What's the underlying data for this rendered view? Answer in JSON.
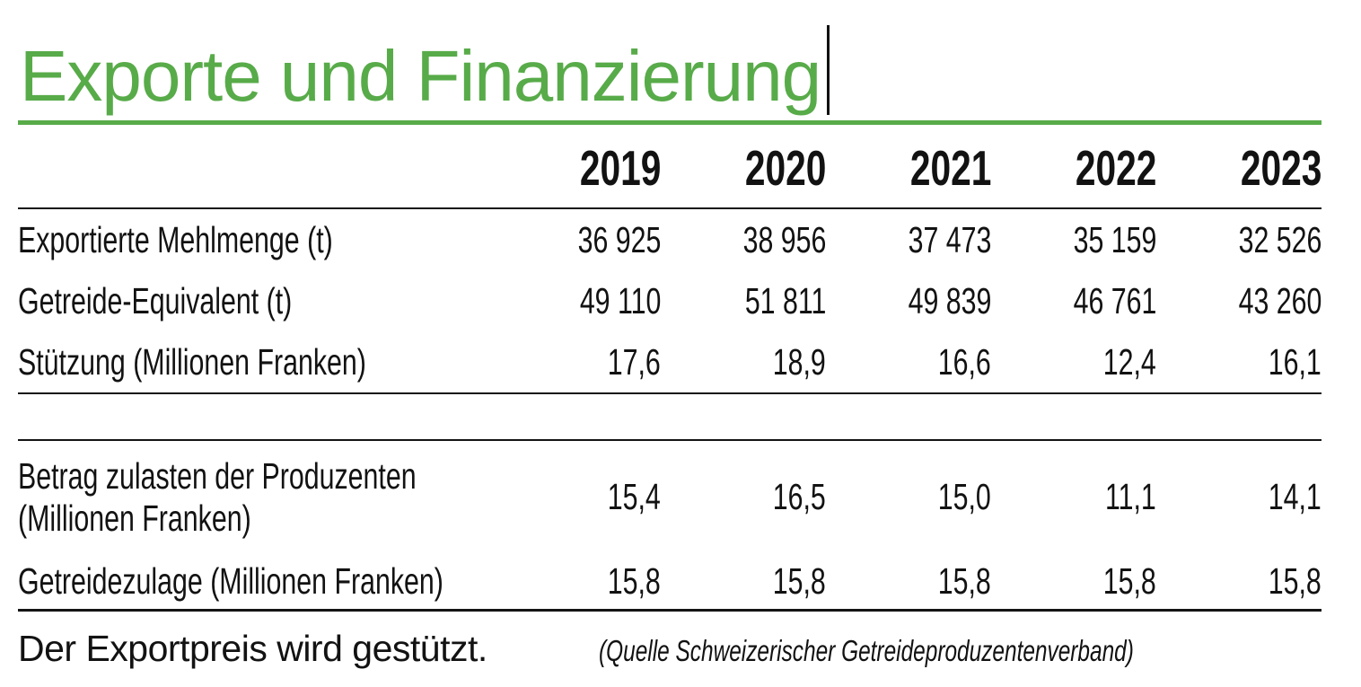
{
  "title": "Exporte und Finanzierung",
  "accent_color": "#58ab49",
  "chart_data": {
    "type": "table",
    "title": "Exporte und Finanzierung",
    "categories": [
      "2019",
      "2020",
      "2021",
      "2022",
      "2023"
    ],
    "series": [
      {
        "name": "Exportierte Mehlmenge (t)",
        "values": [
          36925,
          38956,
          37473,
          35159,
          32526
        ]
      },
      {
        "name": "Getreide-Equivalent (t)",
        "values": [
          49110,
          51811,
          49839,
          46761,
          43260
        ]
      },
      {
        "name": "Stützung (Millionen Franken)",
        "values": [
          17.6,
          18.9,
          16.6,
          12.4,
          16.1
        ]
      },
      {
        "name": "Betrag zulasten der Produzenten (Millionen Franken)",
        "values": [
          15.4,
          16.5,
          15.0,
          11.1,
          14.1
        ]
      },
      {
        "name": "Getreidezulage (Millionen Franken)",
        "values": [
          15.8,
          15.8,
          15.8,
          15.8,
          15.8
        ]
      }
    ],
    "caption": "Der Exportpreis wird gestützt.",
    "source": "(Quelle Schweizerischer Getreideproduzentenverband)"
  },
  "table": {
    "years": [
      "2019",
      "2020",
      "2021",
      "2022",
      "2023"
    ],
    "rows": [
      {
        "label": "Exportierte Mehlmenge (t)",
        "values": [
          "36 925",
          "38 956",
          "37 473",
          "35 159",
          "32 526"
        ]
      },
      {
        "label": "Getreide-Equivalent (t)",
        "values": [
          "49 110",
          "51 811",
          "49 839",
          "46 761",
          "43 260"
        ]
      },
      {
        "label": "Stützung (Millionen Franken)",
        "values": [
          "17,6",
          "18,9",
          "16,6",
          "12,4",
          "16,1"
        ]
      },
      {
        "label": "Betrag zulasten der Produzenten",
        "label2": "(Millionen Franken)",
        "values": [
          "15,4",
          "16,5",
          "15,0",
          "11,1",
          "14,1"
        ]
      },
      {
        "label": "Getreidezulage (Millionen Franken)",
        "values": [
          "15,8",
          "15,8",
          "15,8",
          "15,8",
          "15,8"
        ]
      }
    ]
  },
  "footer": {
    "left": "Der Exportpreis wird gestützt.",
    "right": "(Quelle Schweizerischer Getreideproduzentenverband)"
  }
}
